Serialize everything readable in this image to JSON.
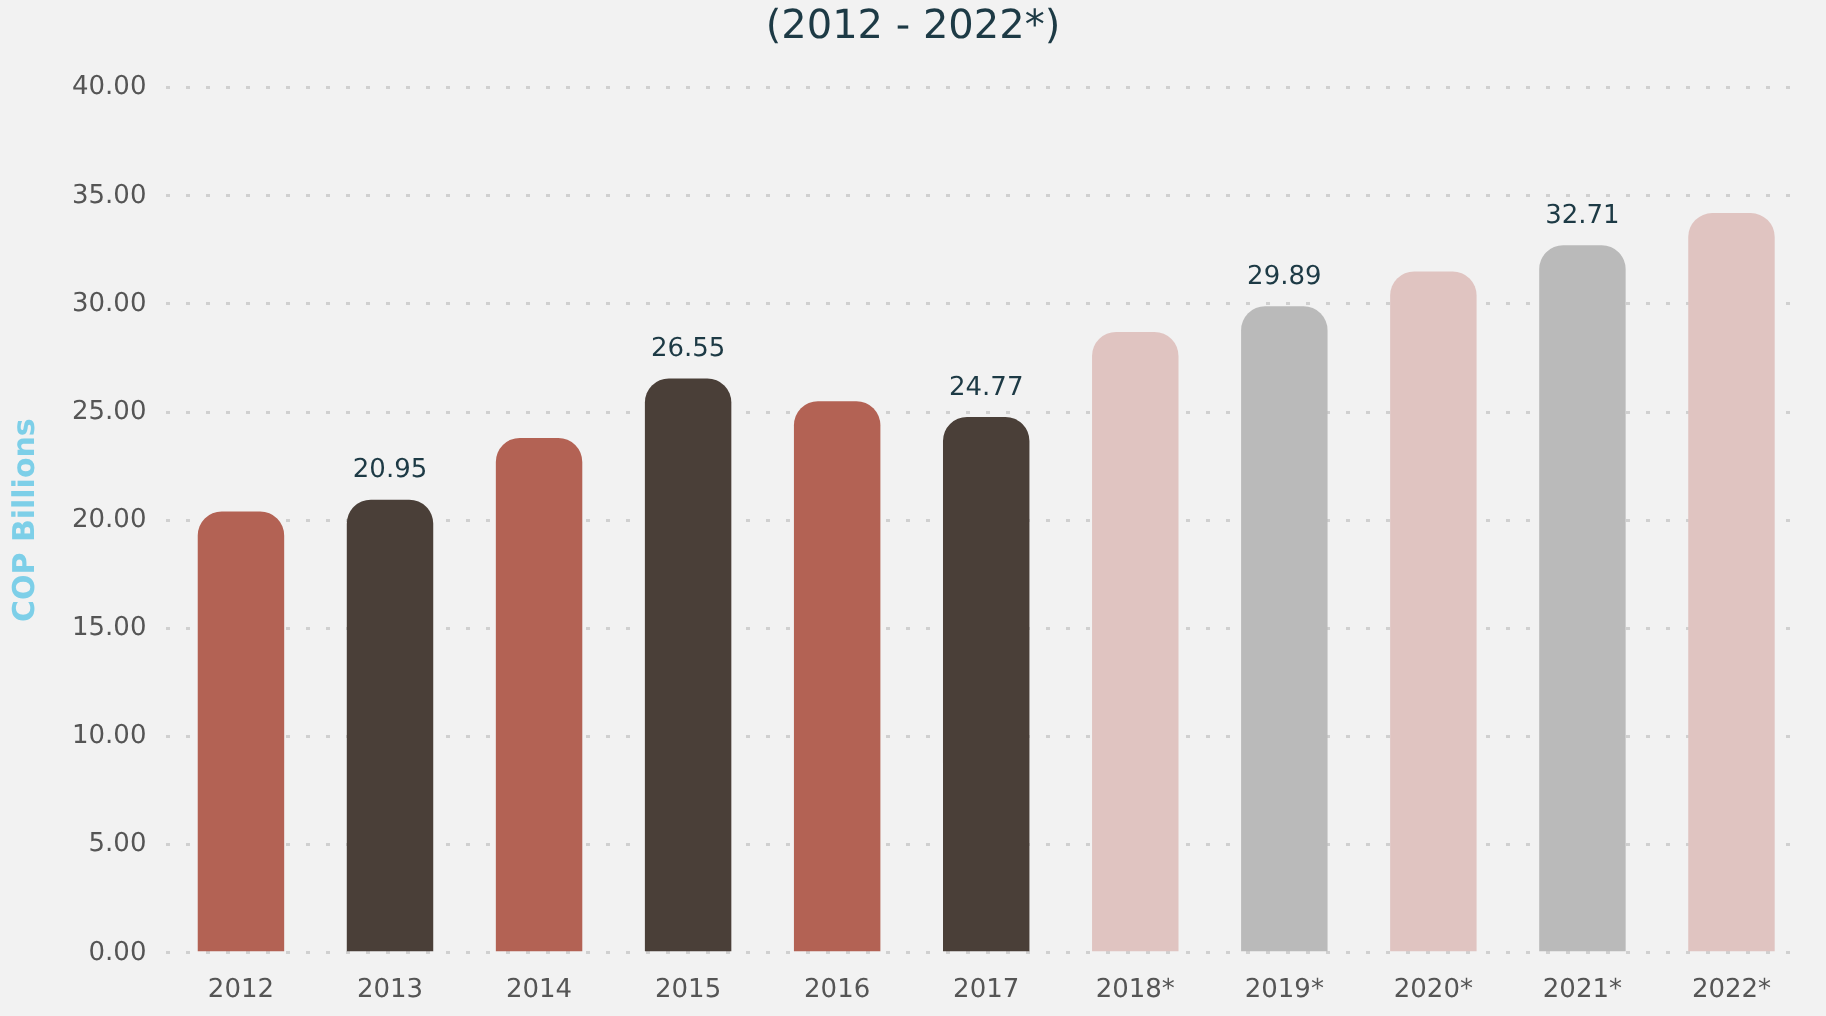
{
  "chart_data": {
    "type": "bar",
    "title": "(2012 - 2022*)",
    "ylabel": "COP Billions",
    "categories": [
      "2012",
      "2013",
      "2014",
      "2015",
      "2016",
      "2017",
      "2018*",
      "2019*",
      "2020*",
      "2021*",
      "2022*"
    ],
    "values": [
      20.4,
      20.95,
      23.8,
      26.55,
      25.5,
      24.77,
      28.7,
      29.89,
      31.5,
      32.71,
      34.2
    ],
    "colors": [
      "#b36254",
      "#4a3f38",
      "#b36254",
      "#4a3f38",
      "#b36254",
      "#4a3f38",
      "#e0c4c1",
      "#bababa",
      "#e0c4c1",
      "#bababa",
      "#e0c4c1"
    ],
    "value_labels": [
      null,
      "20.95",
      null,
      "26.55",
      null,
      "24.77",
      null,
      "29.89",
      null,
      "32.71",
      null
    ],
    "ylim": [
      0,
      40
    ],
    "yticks": [
      {
        "value": 0,
        "label": "0.00"
      },
      {
        "value": 5,
        "label": "5.00"
      },
      {
        "value": 10,
        "label": "10.00"
      },
      {
        "value": 15,
        "label": "15.00"
      },
      {
        "value": 20,
        "label": "20.00"
      },
      {
        "value": 25,
        "label": "25.00"
      },
      {
        "value": 30,
        "label": "30.00"
      },
      {
        "value": 35,
        "label": "35.00"
      },
      {
        "value": 40,
        "label": "40.00"
      }
    ],
    "grid": "y",
    "legend": false
  }
}
